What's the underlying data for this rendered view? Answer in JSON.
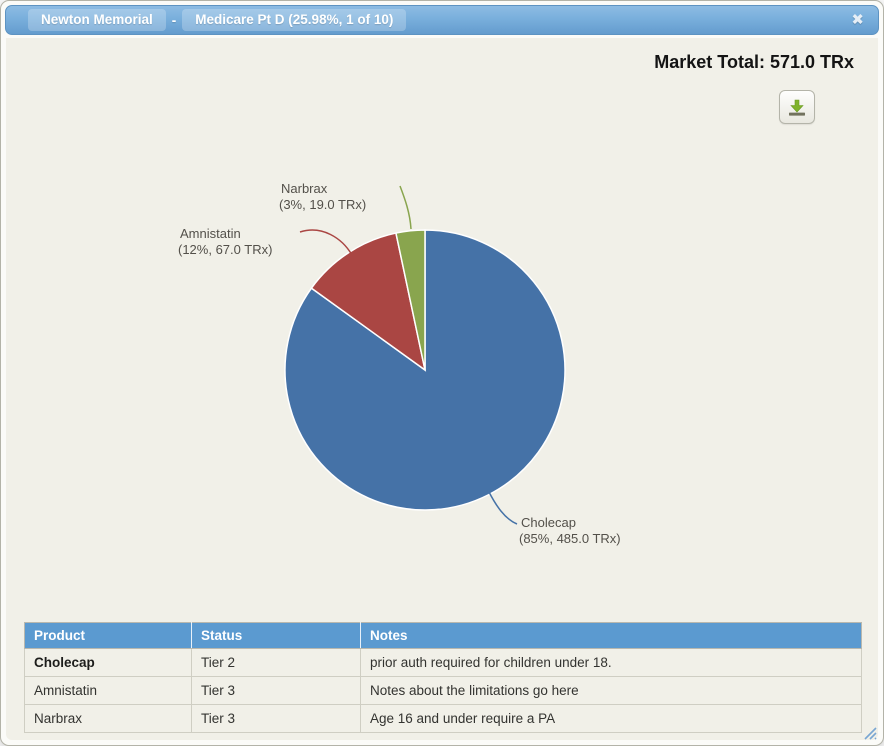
{
  "titlebar": {
    "title_primary": "Newton Memorial",
    "separator": "-",
    "title_secondary": "Medicare Pt D (25.98%, 1 of 10)",
    "close_glyph": "✖"
  },
  "header": {
    "market_total": "Market Total: 571.0 TRx"
  },
  "chart_data": {
    "type": "pie",
    "title": "",
    "units": "TRx",
    "total": 571.0,
    "total_label": "Market Total: 571.0 TRx",
    "start_angle_deg": 0,
    "direction": "clockwise",
    "legend_position": "callout-labels",
    "series": [
      {
        "name": "Cholecap",
        "value": 485.0,
        "percent": 85,
        "label": "Cholecap",
        "sublabel": "(85%, 485.0 TRx)",
        "color": "#4572A7"
      },
      {
        "name": "Amnistatin",
        "value": 67.0,
        "percent": 12,
        "label": "Amnistatin",
        "sublabel": "(12%, 67.0 TRx)",
        "color": "#AA4643"
      },
      {
        "name": "Narbrax",
        "value": 19.0,
        "percent": 3,
        "label": "Narbrax",
        "sublabel": "(3%, 19.0 TRx)",
        "color": "#89A54E"
      }
    ]
  },
  "table": {
    "columns": [
      "Product",
      "Status",
      "Notes"
    ],
    "rows": [
      {
        "product": "Cholecap",
        "status": "Tier 2",
        "notes": "prior auth required for children under 18."
      },
      {
        "product": "Amnistatin",
        "status": "Tier 3",
        "notes": "Notes about the limitations go here"
      },
      {
        "product": "Narbrax",
        "status": "Tier 3",
        "notes": "Age 16 and under require a PA"
      }
    ]
  },
  "colors": {
    "table_header_bg": "#5b9ad0",
    "titlebar_blue": "#6fa6d6",
    "body_bg": "#f1f0e8",
    "download_arrow_green": "#7fb32a",
    "download_base_gray": "#72725e"
  }
}
